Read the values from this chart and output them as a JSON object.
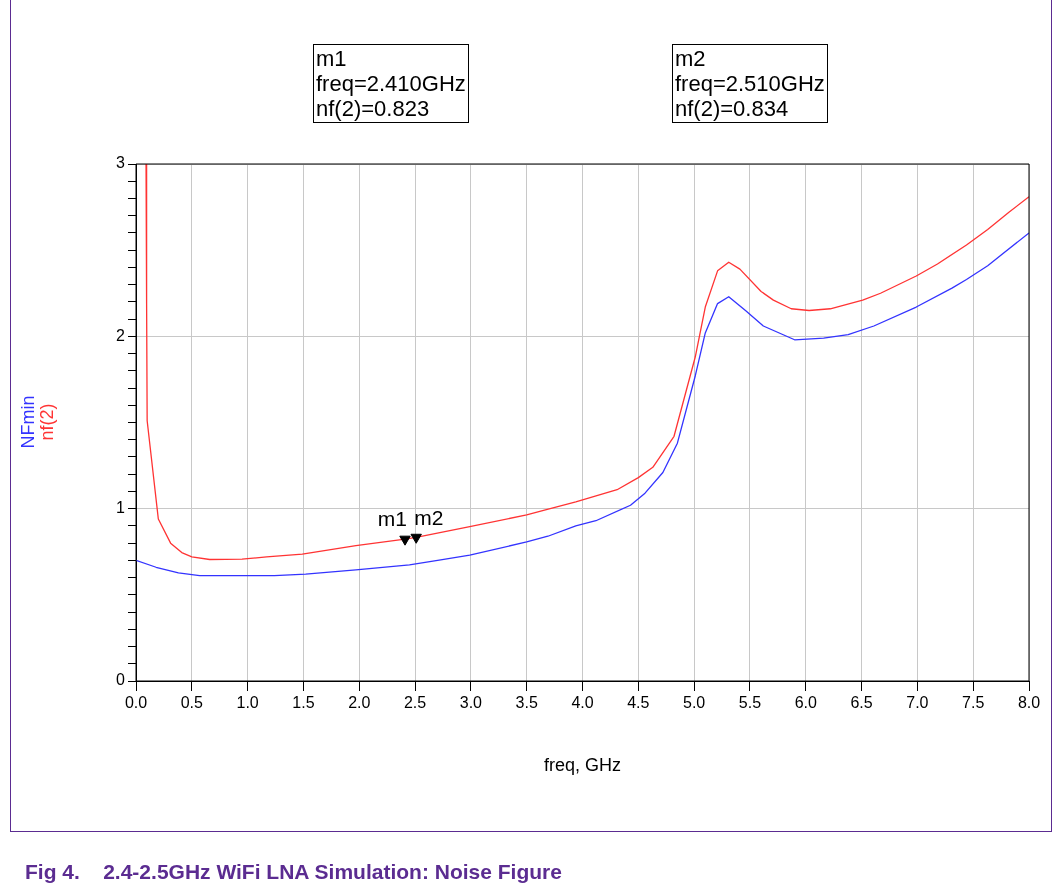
{
  "chart_data": {
    "type": "line",
    "title": "Fig 4.    2.4-2.5GHz WiFi LNA Simulation: Noise Figure",
    "xlabel": "freq, GHz",
    "legend": "left",
    "grid": true,
    "marker": "none",
    "line_style": "solid",
    "xlim": [
      0,
      8
    ],
    "xticks": [
      {
        "value": 0,
        "label": "0.0"
      },
      {
        "value": 0.5,
        "label": "0.5"
      },
      {
        "value": 1,
        "label": "1.0"
      },
      {
        "value": 1.5,
        "label": "1.5"
      },
      {
        "value": 2,
        "label": "2.0"
      },
      {
        "value": 2.5,
        "label": "2.5"
      },
      {
        "value": 3,
        "label": "3.0"
      },
      {
        "value": 3.5,
        "label": "3.5"
      },
      {
        "value": 4,
        "label": "4.0"
      },
      {
        "value": 4.5,
        "label": "4.5"
      },
      {
        "value": 5,
        "label": "5.0"
      },
      {
        "value": 5.5,
        "label": "5.5"
      },
      {
        "value": 6,
        "label": "6.0"
      },
      {
        "value": 6.5,
        "label": "6.5"
      },
      {
        "value": 7,
        "label": "7.0"
      },
      {
        "value": 7.5,
        "label": "7.5"
      },
      {
        "value": 8,
        "label": "8.0"
      }
    ],
    "ylim": [
      0,
      3
    ],
    "yticks": [
      0,
      {
        "value": 0.1,
        "label": null
      },
      {
        "value": 0.2,
        "label": null
      },
      {
        "value": 0.3,
        "label": null
      },
      {
        "value": 0.4,
        "label": null
      },
      {
        "value": 0.5,
        "label": null
      },
      {
        "value": 0.6,
        "label": null
      },
      {
        "value": 0.7,
        "label": null
      },
      {
        "value": 0.8,
        "label": null
      },
      {
        "value": 0.9,
        "label": null
      },
      1,
      {
        "value": 1.1,
        "label": null
      },
      {
        "value": 1.2,
        "label": null
      },
      {
        "value": 1.3,
        "label": null
      },
      {
        "value": 1.4,
        "label": null
      },
      {
        "value": 1.5,
        "label": null
      },
      {
        "value": 1.6,
        "label": null
      },
      {
        "value": 1.7,
        "label": null
      },
      {
        "value": 1.8,
        "label": null
      },
      {
        "value": 1.9,
        "label": null
      },
      2,
      {
        "value": 2.1,
        "label": null
      },
      {
        "value": 2.2,
        "label": null
      },
      {
        "value": 2.3,
        "label": null
      },
      {
        "value": 2.4,
        "label": null
      },
      {
        "value": 2.5,
        "label": null
      },
      {
        "value": 2.6,
        "label": null
      },
      {
        "value": 2.7,
        "label": null
      },
      {
        "value": 2.8,
        "label": null
      },
      {
        "value": 2.9,
        "label": null
      },
      3
    ],
    "series": [
      {
        "name": "NFmin",
        "color": "#3333ff",
        "x": [
          0,
          0.18,
          0.38,
          0.57,
          0.95,
          1.24,
          1.52,
          1.97,
          2.45,
          2.73,
          2.99,
          3.5,
          3.69,
          3.94,
          4.12,
          4.43,
          4.56,
          4.72,
          4.85,
          5.01,
          5.1,
          5.21,
          5.31,
          5.46,
          5.62,
          5.9,
          6.16,
          6.38,
          6.61,
          6.99,
          7.31,
          7.44,
          7.63,
          8.0
        ],
        "values": [
          0.7,
          0.66,
          0.627,
          0.612,
          0.612,
          0.612,
          0.62,
          0.645,
          0.674,
          0.703,
          0.73,
          0.807,
          0.84,
          0.9,
          0.93,
          1.02,
          1.09,
          1.21,
          1.38,
          1.77,
          2.02,
          2.19,
          2.23,
          2.15,
          2.06,
          1.98,
          1.99,
          2.01,
          2.06,
          2.17,
          2.28,
          2.33,
          2.41,
          2.6
        ]
      },
      {
        "type": "scatter",
        "color": "#000000",
        "marker": "triangle",
        "x": [
          2.41,
          2.51
        ],
        "values": [
          0.823,
          0.834
        ],
        "value_labels": [
          "m1",
          "m2"
        ]
      },
      {
        "name": "nf(2)",
        "color": "#ff3333",
        "x": [
          0.09,
          0.095,
          0.1,
          0.2,
          0.31,
          0.41,
          0.5,
          0.66,
          0.95,
          1.17,
          1.49,
          1.97,
          2.41,
          2.51,
          2.99,
          3.5,
          3.94,
          4.31,
          4.5,
          4.63,
          4.82,
          5.01,
          5.1,
          5.21,
          5.31,
          5.41,
          5.6,
          5.71,
          5.87,
          6.03,
          6.22,
          6.51,
          6.67,
          6.99,
          7.18,
          7.44,
          7.63,
          7.82,
          8.0
        ],
        "values": [
          3.0,
          2.19,
          1.51,
          0.94,
          0.8,
          0.745,
          0.72,
          0.705,
          0.707,
          0.72,
          0.736,
          0.786,
          0.823,
          0.834,
          0.896,
          0.964,
          1.04,
          1.11,
          1.18,
          1.24,
          1.42,
          1.88,
          2.17,
          2.38,
          2.43,
          2.39,
          2.26,
          2.21,
          2.16,
          2.15,
          2.16,
          2.21,
          2.25,
          2.35,
          2.42,
          2.53,
          2.62,
          2.72,
          2.81
        ]
      }
    ],
    "annotations": [
      "m1\nfreq=2.410GHz\nnf(2)=0.823",
      "m2\nfreq=2.510GHz\nnf(2)=0.834"
    ]
  }
}
